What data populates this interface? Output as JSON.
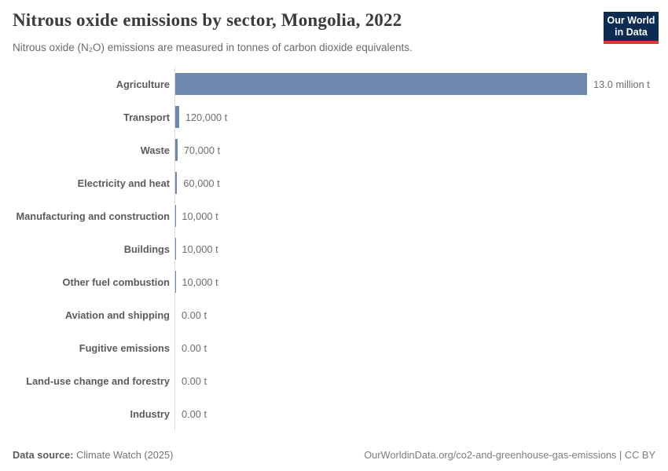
{
  "header": {
    "title": "Nitrous oxide emissions by sector, Mongolia, 2022",
    "subtitle": "Nitrous oxide (N₂O) emissions are measured in tonnes of carbon dioxide equivalents."
  },
  "logo": {
    "line1": "Our World",
    "line2": "in Data",
    "bg_color": "#0d2c51",
    "accent_color": "#d93b33"
  },
  "chart_data": {
    "type": "bar",
    "orientation": "horizontal",
    "title": "Nitrous oxide emissions by sector, Mongolia, 2022",
    "unit": "tonnes of carbon dioxide equivalents",
    "bar_color": "#6d88af",
    "xlim": [
      0,
      13000000
    ],
    "grid": false,
    "legend": "none",
    "categories": [
      "Agriculture",
      "Transport",
      "Waste",
      "Electricity and heat",
      "Manufacturing and construction",
      "Buildings",
      "Other fuel combustion",
      "Aviation and shipping",
      "Fugitive emissions",
      "Land-use change and forestry",
      "Industry"
    ],
    "values": [
      13000000,
      120000,
      70000,
      60000,
      10000,
      10000,
      10000,
      0,
      0,
      0,
      0
    ],
    "value_labels": [
      "13.0 million t",
      "120,000 t",
      "70,000 t",
      "60,000 t",
      "10,000 t",
      "10,000 t",
      "10,000 t",
      "0.00 t",
      "0.00 t",
      "0.00 t",
      "0.00 t"
    ]
  },
  "footer": {
    "datasource_label": "Data source:",
    "datasource_value": " Climate Watch (2025)",
    "credit": "OurWorldinData.org/co2-and-greenhouse-gas-emissions | CC BY"
  }
}
